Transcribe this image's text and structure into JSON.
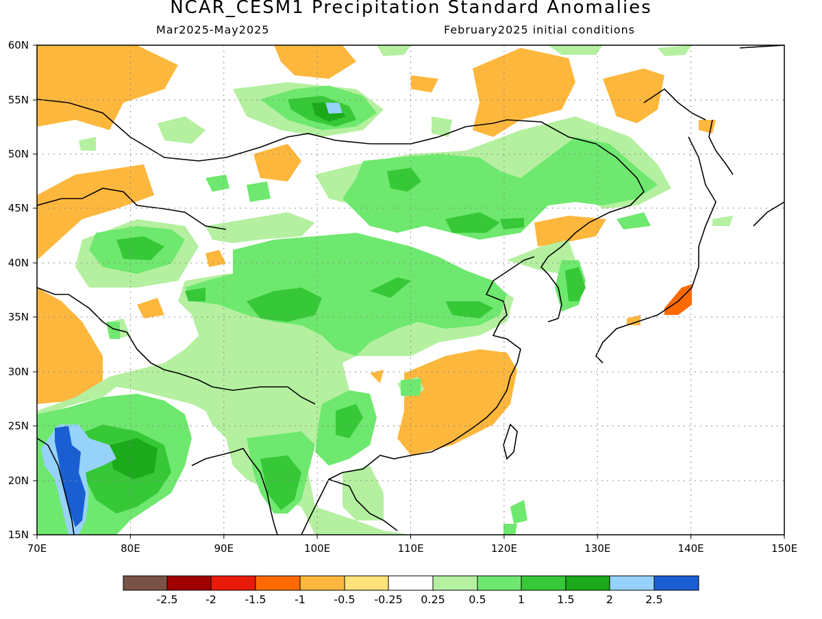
{
  "title": "NCAR_CESM1 Precipitation Standard Anomalies",
  "subtitle_left": "Mar2025-May2025",
  "subtitle_right": "February2025 initial conditions",
  "map": {
    "lon_range": [
      70,
      150
    ],
    "lat_range": [
      15,
      60
    ],
    "lon_labels": [
      "70E",
      "80E",
      "90E",
      "100E",
      "110E",
      "120E",
      "130E",
      "140E",
      "150E"
    ],
    "lat_labels": [
      "15N",
      "20N",
      "25N",
      "30N",
      "35N",
      "40N",
      "45N",
      "50N",
      "55N",
      "60N"
    ]
  },
  "colorbar": {
    "colors": [
      "#7a5346",
      "#a00000",
      "#e81a0a",
      "#ff6a00",
      "#fdb73c",
      "#ffe27a",
      "#ffffff",
      "#b4f0a0",
      "#6ee86e",
      "#37c837",
      "#1aaa1a",
      "#96d2fa",
      "#1a5fd2"
    ],
    "labels": [
      "-2.5",
      "-2",
      "-1.5",
      "-1",
      "-0.5",
      "-0.25",
      "0.25",
      "0.5",
      "1",
      "1.5",
      "2",
      "2.5"
    ]
  }
}
